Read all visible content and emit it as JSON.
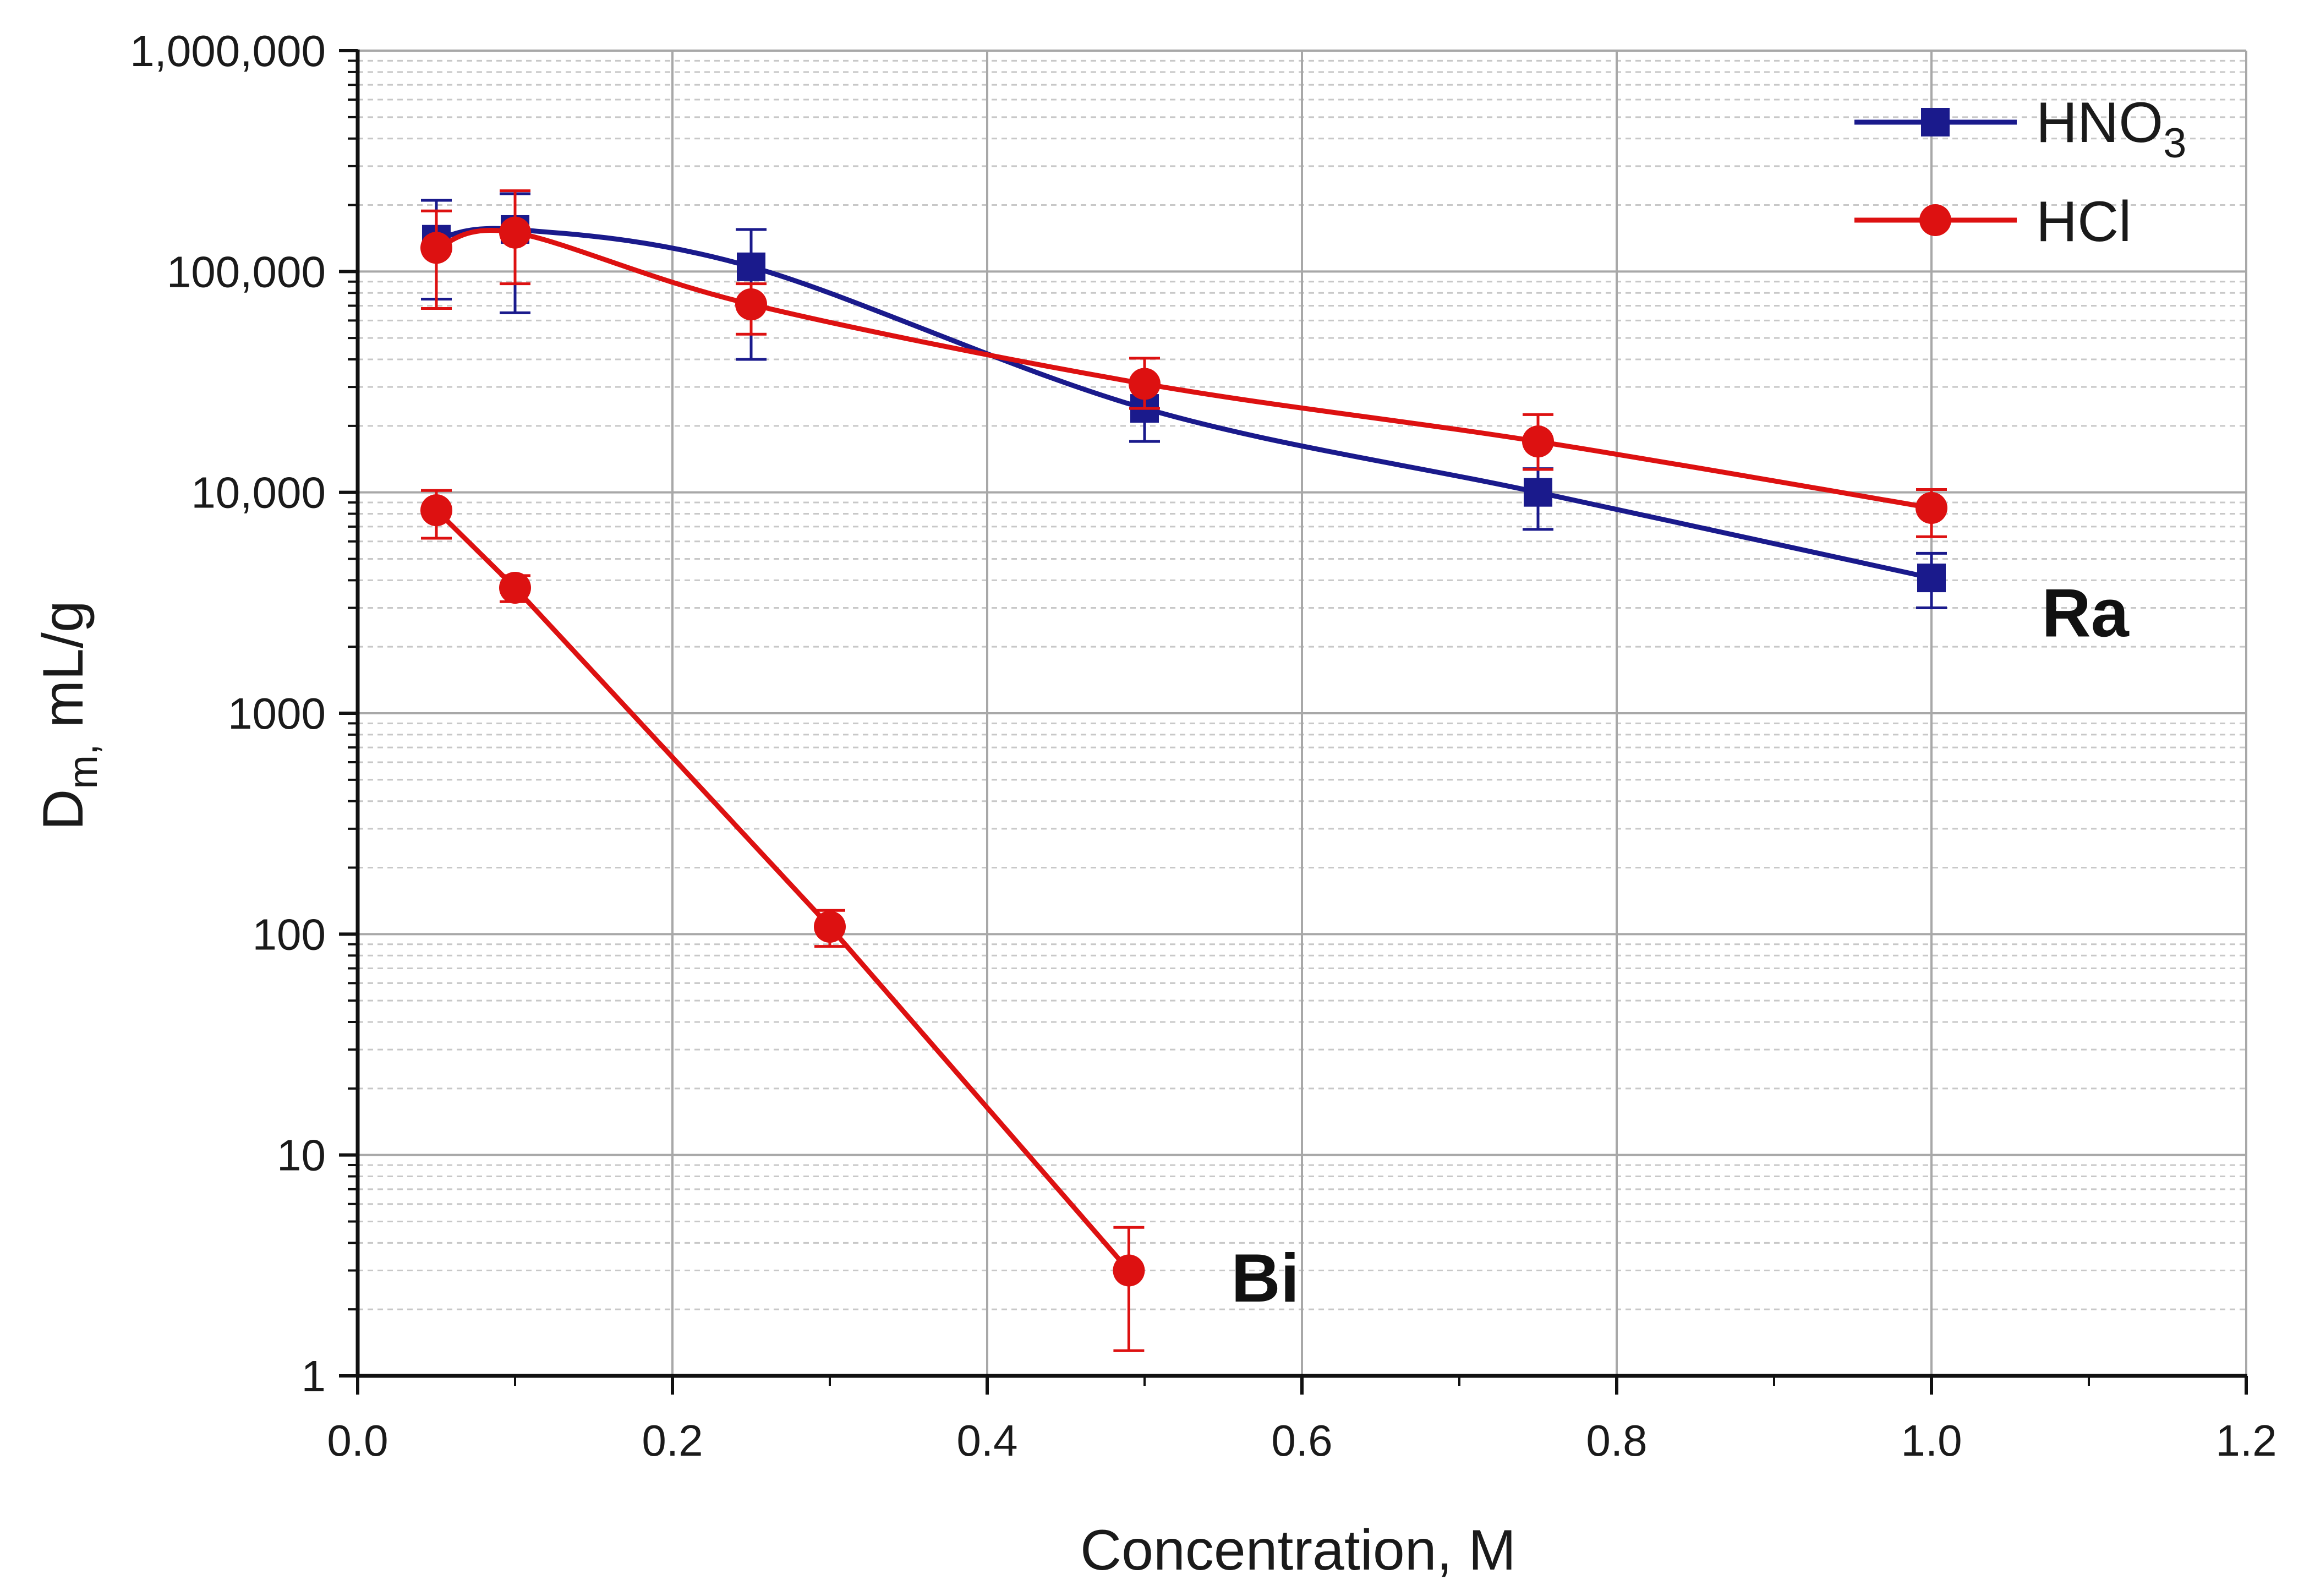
{
  "chart_data": {
    "type": "line",
    "title": "",
    "xlabel": "Concentration, M",
    "ylabel": "D",
    "ylabel_subscript": "m,",
    "ylabel_suffix": " mL/g",
    "xlim": [
      0.0,
      1.2
    ],
    "ylim": [
      1,
      1000000
    ],
    "yscale": "log",
    "grid": true,
    "x_ticks": [
      0.0,
      0.2,
      0.4,
      0.6,
      0.8,
      1.0,
      1.2
    ],
    "x_tick_labels": [
      "0.0",
      "0.2",
      "0.4",
      "0.6",
      "0.8",
      "1.0",
      "1.2"
    ],
    "y_ticks": [
      1,
      10,
      100,
      1000,
      10000,
      100000,
      1000000
    ],
    "y_tick_labels": [
      "1",
      "10",
      "100",
      "1000",
      "10,000",
      "100,000",
      "1,000,000"
    ],
    "legend_position": "top-right",
    "legend": [
      {
        "label": "HNO",
        "subscript": "3",
        "color": "#1a1a8c",
        "marker": "square"
      },
      {
        "label": "HCl",
        "subscript": "",
        "color": "#dd1111",
        "marker": "circle"
      }
    ],
    "series": [
      {
        "name": "Ra-HNO3",
        "color": "#1a1a8c",
        "marker": "square",
        "x": [
          0.05,
          0.1,
          0.25,
          0.5,
          0.75,
          1.0
        ],
        "y": [
          140000,
          155000,
          105000,
          24000,
          10000,
          4100
        ],
        "err_low": [
          75000,
          65000,
          40000,
          17000,
          6800,
          3000
        ],
        "err_high": [
          210000,
          225000,
          155000,
          31000,
          12800,
          5300
        ]
      },
      {
        "name": "Ra-HCl",
        "color": "#dd1111",
        "marker": "circle",
        "x": [
          0.05,
          0.1,
          0.25,
          0.5,
          0.75,
          1.0
        ],
        "y": [
          128000,
          150000,
          71000,
          31000,
          17000,
          8500
        ],
        "err_low": [
          68000,
          88000,
          52000,
          24000,
          12700,
          6300
        ],
        "err_high": [
          188000,
          232000,
          88000,
          40500,
          22500,
          10300
        ]
      },
      {
        "name": "Bi-HCl",
        "color": "#dd1111",
        "marker": "circle",
        "x": [
          0.05,
          0.1,
          0.3,
          0.49
        ],
        "y": [
          8300,
          3700,
          108,
          3.0
        ],
        "err_low": [
          6200,
          3200,
          88,
          1.3
        ],
        "err_high": [
          10200,
          4200,
          128,
          4.7
        ]
      }
    ],
    "annotations": [
      {
        "text": "Ra",
        "x": 1.07,
        "y": 2800
      },
      {
        "text": "Bi",
        "x": 0.555,
        "y": 2.3
      }
    ]
  }
}
